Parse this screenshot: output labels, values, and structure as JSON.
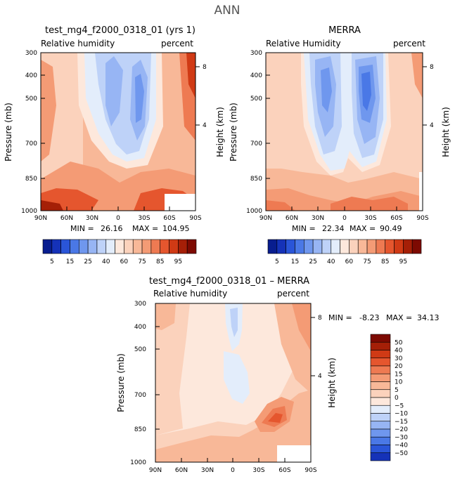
{
  "figure_title": "ANN",
  "colors": {
    "blue_scale": [
      "#081d8f",
      "#1532b8",
      "#2a55d8",
      "#4a78e6",
      "#6f97ee",
      "#97b5f4",
      "#bed2f8",
      "#e3edfb"
    ],
    "red_scale": [
      "#fde8dc",
      "#fbd2bc",
      "#f8b898",
      "#f49b75",
      "#ee7a52",
      "#e5562e",
      "#d03a15",
      "#a51f07",
      "#7d0a02"
    ],
    "mask": "#ffffff"
  },
  "chart_data": [
    {
      "type": "contour",
      "panel_title": "test_mg4_f2000_0318_01 (yrs 1)",
      "left_label": "Relative humidity",
      "right_label": "percent",
      "xlabel": "",
      "ylabel": "Pressure (mb)",
      "y2label": "Height (km)",
      "xticks": [
        "90N",
        "60N",
        "30N",
        "0",
        "30S",
        "60S",
        "90S"
      ],
      "yticks": [
        "300",
        "400",
        "500",
        "700",
        "850",
        "1000"
      ],
      "y2ticks": [
        "8",
        "4"
      ],
      "min_label": "MIN =",
      "min_value": "26.16",
      "max_label": "MAX =",
      "max_value": "104.95",
      "x_range": [
        90,
        -90
      ],
      "p_range": [
        300,
        1000
      ],
      "contour_levels": [
        5,
        10,
        15,
        20,
        25,
        30,
        35,
        40,
        50,
        60,
        65,
        70,
        75,
        80,
        85,
        90,
        95
      ]
    },
    {
      "type": "contour",
      "panel_title": "MERRA",
      "left_label": "Relative Humidity",
      "right_label": "percent",
      "xlabel": "",
      "ylabel": "Pressure (mb)",
      "y2label": "Height (km)",
      "xticks": [
        "90N",
        "60N",
        "30N",
        "0",
        "30S",
        "60S",
        "90S"
      ],
      "yticks": [
        "300",
        "400",
        "500",
        "700",
        "850",
        "1000"
      ],
      "y2ticks": [
        "8",
        "4"
      ],
      "min_label": "MIN =",
      "min_value": "22.34",
      "max_label": "MAX =",
      "max_value": "90.49",
      "x_range": [
        90,
        -90
      ],
      "p_range": [
        300,
        1000
      ],
      "contour_levels": [
        5,
        10,
        15,
        20,
        25,
        30,
        35,
        40,
        50,
        60,
        65,
        70,
        75,
        80,
        85,
        90,
        95
      ]
    },
    {
      "type": "contour",
      "panel_title": "test_mg4_f2000_0318_01 – MERRA",
      "left_label": "Relative humidity",
      "right_label": "percent",
      "xlabel": "",
      "ylabel": "Pressure (mb)",
      "y2label": "Height (km)",
      "xticks": [
        "90N",
        "60N",
        "30N",
        "0",
        "30S",
        "60S",
        "90S"
      ],
      "yticks": [
        "300",
        "400",
        "500",
        "700",
        "850",
        "1000"
      ],
      "y2ticks": [
        "8",
        "4"
      ],
      "min_label": "MIN =",
      "min_value": "-8.23",
      "max_label": "MAX =",
      "max_value": "34.13",
      "x_range": [
        90,
        -90
      ],
      "p_range": [
        300,
        1000
      ],
      "contour_levels": [
        -50,
        -40,
        -30,
        -20,
        -15,
        -10,
        -5,
        0,
        5,
        10,
        15,
        20,
        30,
        40,
        50
      ]
    }
  ],
  "colorbar_top": {
    "labels": [
      "5",
      "15",
      "25",
      "40",
      "60",
      "75",
      "85",
      "95"
    ],
    "colors": [
      "#081d8f",
      "#1532b8",
      "#2a55d8",
      "#4a78e6",
      "#6f97ee",
      "#97b5f4",
      "#bed2f8",
      "#e3edfb",
      "#fde8dc",
      "#fbd2bc",
      "#f8b898",
      "#f49b75",
      "#ee7a52",
      "#e5562e",
      "#d03a15",
      "#a51f07",
      "#7d0a02"
    ]
  },
  "colorbar_diff": {
    "labels": [
      "50",
      "40",
      "30",
      "20",
      "15",
      "10",
      "5",
      "0",
      "−5",
      "−10",
      "−15",
      "−20",
      "−30",
      "−40",
      "−50"
    ],
    "colors": [
      "#7d0a02",
      "#a51f07",
      "#d03a15",
      "#e5562e",
      "#ee7a52",
      "#f49b75",
      "#f8b898",
      "#fbd2bc",
      "#fde8dc",
      "#e3edfb",
      "#bed2f8",
      "#97b5f4",
      "#6f97ee",
      "#4a78e6",
      "#2a55d8",
      "#1532b8"
    ]
  }
}
